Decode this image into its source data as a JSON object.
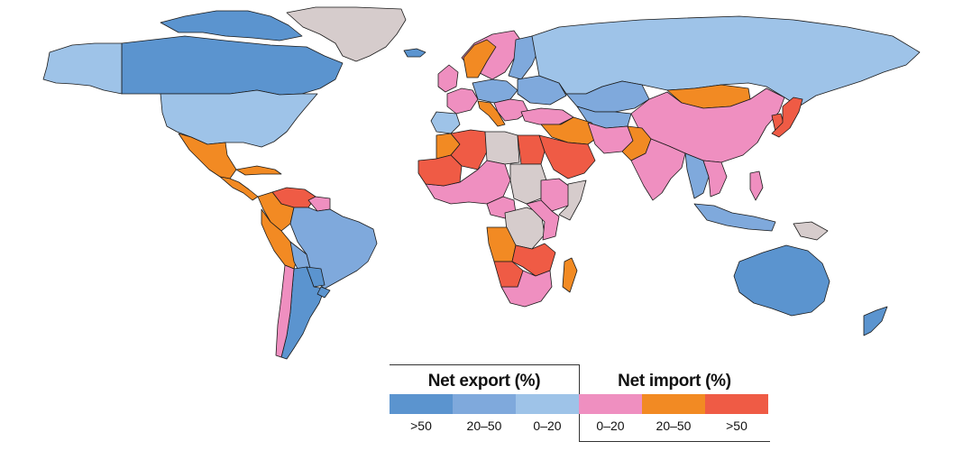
{
  "colors": {
    "export_gt50": "#5b94cf",
    "export_20_50": "#7fa9dc",
    "export_0_20": "#9ec3e8",
    "import_0_20": "#ef8fc0",
    "import_20_50": "#f28a23",
    "import_gt50": "#ef5b45",
    "no_data": "#d6cccc",
    "border": "#1a1a1a"
  },
  "legend": {
    "export_title": "Net export (%)",
    "import_title": "Net import (%)",
    "classes": [
      {
        "label": ">50",
        "color_key": "export_gt50"
      },
      {
        "label": "20–50",
        "color_key": "export_20_50"
      },
      {
        "label": "0–20",
        "color_key": "export_0_20"
      },
      {
        "label": "0–20",
        "color_key": "import_0_20"
      },
      {
        "label": "20–50",
        "color_key": "import_20_50"
      },
      {
        "label": ">50",
        "color_key": "import_gt50"
      }
    ]
  },
  "regions": [
    {
      "name": "canada",
      "cls": "export_gt50"
    },
    {
      "name": "alaska",
      "cls": "export_0_20"
    },
    {
      "name": "canadian-arctic-islands",
      "cls": "export_gt50"
    },
    {
      "name": "greenland",
      "cls": "no_data"
    },
    {
      "name": "iceland",
      "cls": "export_gt50"
    },
    {
      "name": "usa",
      "cls": "export_0_20"
    },
    {
      "name": "mexico",
      "cls": "import_20_50"
    },
    {
      "name": "central-america",
      "cls": "import_20_50"
    },
    {
      "name": "cuba",
      "cls": "import_20_50"
    },
    {
      "name": "venezuela",
      "cls": "import_gt50"
    },
    {
      "name": "colombia",
      "cls": "import_20_50"
    },
    {
      "name": "guianas",
      "cls": "import_0_20"
    },
    {
      "name": "ecuador-peru",
      "cls": "import_20_50"
    },
    {
      "name": "brazil",
      "cls": "export_20_50"
    },
    {
      "name": "bolivia",
      "cls": "export_20_50"
    },
    {
      "name": "paraguay",
      "cls": "export_gt50"
    },
    {
      "name": "argentina",
      "cls": "export_gt50"
    },
    {
      "name": "chile",
      "cls": "import_0_20"
    },
    {
      "name": "uruguay",
      "cls": "export_gt50"
    },
    {
      "name": "scandinavia",
      "cls": "import_0_20"
    },
    {
      "name": "finland-baltics",
      "cls": "export_20_50"
    },
    {
      "name": "norway-coast",
      "cls": "import_20_50"
    },
    {
      "name": "uk-ireland",
      "cls": "import_0_20"
    },
    {
      "name": "western-europe",
      "cls": "import_0_20"
    },
    {
      "name": "central-europe",
      "cls": "export_20_50"
    },
    {
      "name": "iberia",
      "cls": "export_0_20"
    },
    {
      "name": "italy",
      "cls": "import_20_50"
    },
    {
      "name": "balkans",
      "cls": "import_0_20"
    },
    {
      "name": "eastern-europe",
      "cls": "export_20_50"
    },
    {
      "name": "russia",
      "cls": "export_0_20"
    },
    {
      "name": "kazakhstan",
      "cls": "export_20_50"
    },
    {
      "name": "central-asia",
      "cls": "export_20_50"
    },
    {
      "name": "mongolia",
      "cls": "import_20_50"
    },
    {
      "name": "china",
      "cls": "import_0_20"
    },
    {
      "name": "korea",
      "cls": "import_gt50"
    },
    {
      "name": "japan",
      "cls": "import_gt50"
    },
    {
      "name": "turkey",
      "cls": "import_0_20"
    },
    {
      "name": "middle-east",
      "cls": "import_20_50"
    },
    {
      "name": "saudi-arabia",
      "cls": "import_gt50"
    },
    {
      "name": "iran",
      "cls": "import_0_20"
    },
    {
      "name": "afghanistan-pakistan",
      "cls": "import_20_50"
    },
    {
      "name": "india",
      "cls": "import_0_20"
    },
    {
      "name": "myanmar-thailand",
      "cls": "export_20_50"
    },
    {
      "name": "indochina",
      "cls": "import_0_20"
    },
    {
      "name": "philippines",
      "cls": "import_0_20"
    },
    {
      "name": "indonesia",
      "cls": "export_20_50"
    },
    {
      "name": "png",
      "cls": "no_data"
    },
    {
      "name": "australia",
      "cls": "export_gt50"
    },
    {
      "name": "new-zealand",
      "cls": "export_gt50"
    },
    {
      "name": "morocco",
      "cls": "import_20_50"
    },
    {
      "name": "algeria",
      "cls": "import_gt50"
    },
    {
      "name": "libya",
      "cls": "no_data"
    },
    {
      "name": "egypt",
      "cls": "import_gt50"
    },
    {
      "name": "west-africa",
      "cls": "import_0_20"
    },
    {
      "name": "mauritania-mali",
      "cls": "import_gt50"
    },
    {
      "name": "sudan",
      "cls": "no_data"
    },
    {
      "name": "ethiopia",
      "cls": "import_0_20"
    },
    {
      "name": "somalia",
      "cls": "no_data"
    },
    {
      "name": "central-africa",
      "cls": "import_0_20"
    },
    {
      "name": "drc",
      "cls": "no_data"
    },
    {
      "name": "angola",
      "cls": "import_20_50"
    },
    {
      "name": "east-africa",
      "cls": "import_0_20"
    },
    {
      "name": "zambia-zimbabwe",
      "cls": "import_gt50"
    },
    {
      "name": "southern-africa",
      "cls": "import_0_20"
    },
    {
      "name": "namibia",
      "cls": "import_gt50"
    },
    {
      "name": "madagascar",
      "cls": "import_20_50"
    }
  ]
}
